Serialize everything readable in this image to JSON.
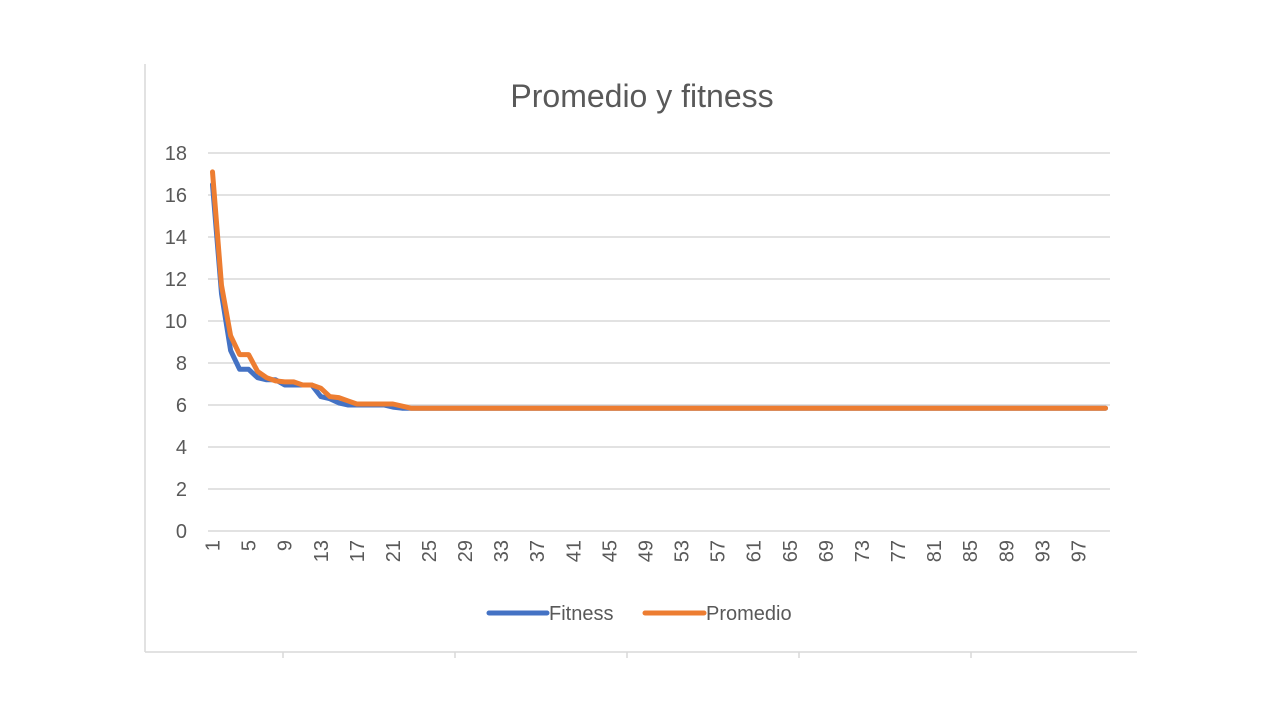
{
  "chart_data": {
    "type": "line",
    "title": "Promedio y fitness",
    "xlabel": "",
    "ylabel": "",
    "ylim": [
      0,
      18
    ],
    "y_ticks": [
      0,
      2,
      4,
      6,
      8,
      10,
      12,
      14,
      16,
      18
    ],
    "x_range": [
      1,
      100
    ],
    "x_tick_labels": [
      1,
      5,
      9,
      13,
      17,
      21,
      25,
      29,
      33,
      37,
      41,
      45,
      49,
      53,
      57,
      61,
      65,
      69,
      73,
      77,
      81,
      85,
      89,
      93,
      97
    ],
    "grid": true,
    "legend_position": "bottom",
    "series": [
      {
        "name": "Fitness",
        "color": "#4472C4",
        "x": [
          1,
          2,
          3,
          4,
          5,
          6,
          7,
          8,
          9,
          10,
          11,
          12,
          13,
          14,
          15,
          16,
          17,
          18,
          19,
          20,
          21,
          22,
          23,
          100
        ],
        "values": [
          16.5,
          11.3,
          8.6,
          7.7,
          7.7,
          7.3,
          7.2,
          7.2,
          6.95,
          6.95,
          6.95,
          6.95,
          6.4,
          6.3,
          6.1,
          6.0,
          6.0,
          6.0,
          6.0,
          6.0,
          5.9,
          5.85,
          5.85,
          5.85
        ]
      },
      {
        "name": "Promedio",
        "color": "#ED7D31",
        "x": [
          1,
          2,
          3,
          4,
          5,
          6,
          7,
          8,
          9,
          10,
          11,
          12,
          13,
          14,
          15,
          16,
          17,
          18,
          19,
          20,
          21,
          22,
          23,
          100
        ],
        "values": [
          17.1,
          11.7,
          9.3,
          8.4,
          8.4,
          7.6,
          7.3,
          7.15,
          7.1,
          7.1,
          6.95,
          6.95,
          6.8,
          6.4,
          6.35,
          6.2,
          6.05,
          6.05,
          6.05,
          6.05,
          6.05,
          5.95,
          5.85,
          5.85
        ]
      }
    ]
  }
}
